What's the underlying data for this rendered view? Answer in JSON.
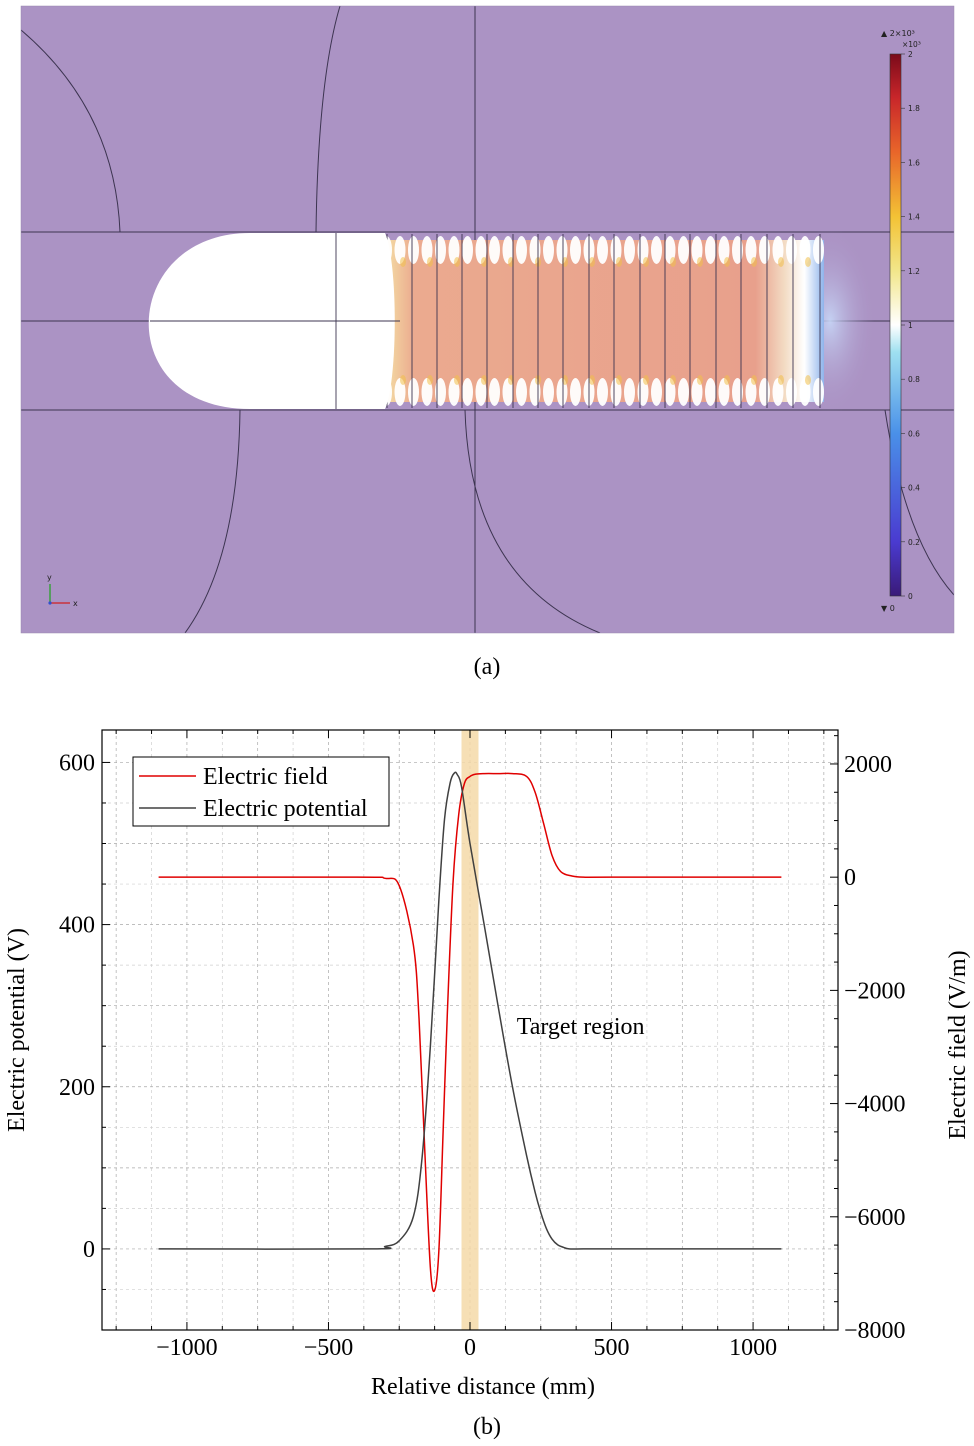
{
  "panel_a": {
    "caption": "(a)",
    "colorbar": {
      "multiplier_label": "×10³",
      "max_marker_label": "▲ 2×10³",
      "min_marker_label": "▼ 0",
      "ticks": [
        "2",
        "1.8",
        "1.6",
        "1.4",
        "1.2",
        "1",
        "0.8",
        "0.6",
        "0.4",
        "0.2",
        "0"
      ],
      "tick_values": [
        2,
        1.8,
        1.6,
        1.4,
        1.2,
        1,
        0.8,
        0.6,
        0.4,
        0.2,
        0
      ]
    },
    "axis_triad": {
      "x_label": "x",
      "y_label": "y"
    },
    "colors": {
      "background": "#ab93c4",
      "field_core": "#e8a08c",
      "edge_lines": "#3c3450"
    }
  },
  "panel_b": {
    "caption": "(b)",
    "chart_data": {
      "type": "line",
      "title": "",
      "xlabel": "Relative distance (mm)",
      "ylabel": "Electric potential (V)",
      "y2label": "Electric field (V/m)",
      "xlim": [
        -1300,
        1300
      ],
      "ylim": [
        -100,
        640
      ],
      "y2lim": [
        -8000,
        2600
      ],
      "xticks": [
        -1000,
        -500,
        0,
        500,
        1000
      ],
      "xtick_labels": [
        "−1000",
        "−500",
        "0",
        "500",
        "1000"
      ],
      "yticks": [
        0,
        200,
        400,
        600
      ],
      "ytick_labels": [
        "0",
        "200",
        "400",
        "600"
      ],
      "y2ticks": [
        2000,
        0,
        -2000,
        -4000,
        -6000,
        -8000
      ],
      "y2tick_labels": [
        "2000",
        "0",
        "−2000",
        "−4000",
        "−6000",
        "−8000"
      ],
      "grid": true,
      "legend_position": "top-left",
      "annotation": "Target region",
      "highlight_band": {
        "x_start": -30,
        "x_end": 30,
        "color": "#f5d9a8"
      },
      "series": [
        {
          "name": "Electric field",
          "axis": "right",
          "color": "#e00000",
          "x": [
            -1100,
            -400,
            -300,
            -250,
            -200,
            -180,
            -160,
            -140,
            -125,
            -110,
            -95,
            -80,
            -60,
            -40,
            -20,
            0,
            20,
            50,
            100,
            150,
            200,
            230,
            260,
            290,
            320,
            360,
            400,
            500,
            1100
          ],
          "y": [
            0,
            0,
            -20,
            -150,
            -1200,
            -2500,
            -4800,
            -6900,
            -7300,
            -6600,
            -4500,
            -2400,
            -100,
            1100,
            1650,
            1780,
            1820,
            1830,
            1830,
            1830,
            1780,
            1500,
            950,
            380,
            100,
            20,
            0,
            0,
            0
          ]
        },
        {
          "name": "Electric potential",
          "axis": "left",
          "color": "#404040",
          "x": [
            -1100,
            -350,
            -300,
            -250,
            -200,
            -170,
            -140,
            -110,
            -90,
            -70,
            -55,
            -45,
            -30,
            0,
            50,
            100,
            150,
            200,
            230,
            250,
            270,
            290,
            310,
            330,
            350,
            400,
            500,
            1100
          ],
          "y": [
            0,
            0,
            3,
            10,
            40,
            110,
            250,
            430,
            530,
            575,
            587,
            585,
            570,
            500,
            400,
            298,
            200,
            115,
            70,
            45,
            25,
            12,
            5,
            2,
            0,
            0,
            0,
            0
          ]
        }
      ]
    }
  }
}
